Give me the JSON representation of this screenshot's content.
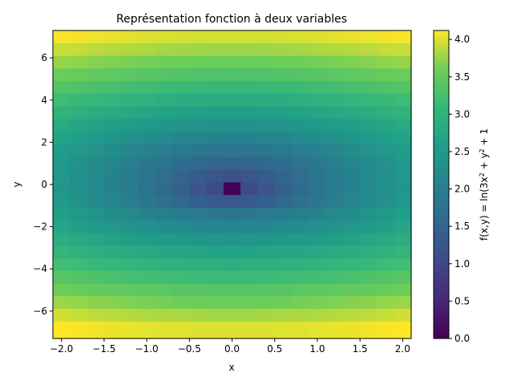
{
  "chart_data": {
    "type": "heatmap",
    "title": "Représentation fonction à deux variables",
    "xlabel": "x",
    "ylabel": "y",
    "colorbar_label": "f(x,y) = ln(3x² + y² + 1",
    "colormap": "viridis",
    "xlim": [
      -2.1,
      2.1
    ],
    "ylim": [
      -7.3,
      7.3
    ],
    "clim": [
      0.0,
      4.12
    ],
    "x_ticks": [
      -2.0,
      -1.5,
      -1.0,
      -0.5,
      0.0,
      0.5,
      1.0,
      1.5,
      2.0
    ],
    "x_tick_labels": [
      "−2.0",
      "−1.5",
      "−1.0",
      "−0.5",
      "0.0",
      "0.5",
      "1.0",
      "1.5",
      "2.0"
    ],
    "y_ticks": [
      6,
      4,
      2,
      0,
      -2,
      -4,
      -6
    ],
    "y_tick_labels": [
      "6",
      "4",
      "2",
      "0",
      "−2",
      "−4",
      "−6"
    ],
    "colorbar_ticks": [
      0.0,
      0.5,
      1.0,
      1.5,
      2.0,
      2.5,
      3.0,
      3.5,
      4.0
    ],
    "colorbar_tick_labels": [
      "0.0",
      "0.5",
      "1.0",
      "1.5",
      "2.0",
      "2.5",
      "3.0",
      "3.5",
      "4.0"
    ],
    "grid": false,
    "x_centers": [
      -2.0,
      -1.8,
      -1.6,
      -1.4,
      -1.2,
      -1.0,
      -0.8,
      -0.6,
      -0.4,
      -0.2,
      0.0,
      0.2,
      0.4,
      0.6,
      0.8,
      1.0,
      1.2,
      1.4,
      1.6,
      1.8,
      2.0
    ],
    "y_centers": [
      7.0,
      6.4,
      5.8,
      5.2,
      4.6,
      4.0,
      3.4,
      2.8,
      2.2,
      1.6,
      1.0,
      0.4,
      -0.2,
      -0.8,
      -1.4,
      -2.0,
      -2.6,
      -3.2,
      -3.8,
      -4.4,
      -5.0,
      -5.6,
      -6.2,
      -6.8
    ],
    "z_function": "f(x,y) = ln(3x² + y² + 1)",
    "z_values": [
      [
        4.1,
        4.08,
        4.06,
        4.04,
        4.02,
        4.0,
        3.99,
        3.98,
        3.97,
        3.97,
        3.97,
        3.97,
        3.97,
        3.98,
        3.99,
        4.0,
        4.02,
        4.04,
        4.06,
        4.08,
        4.1
      ],
      [
        3.93,
        3.91,
        3.88,
        3.86,
        3.84,
        3.82,
        3.8,
        3.79,
        3.78,
        3.77,
        3.77,
        3.77,
        3.78,
        3.79,
        3.8,
        3.82,
        3.84,
        3.86,
        3.88,
        3.91,
        3.93
      ],
      [
        3.75,
        3.72,
        3.69,
        3.66,
        3.64,
        3.62,
        3.6,
        3.58,
        3.57,
        3.56,
        3.56,
        3.56,
        3.57,
        3.58,
        3.6,
        3.62,
        3.64,
        3.66,
        3.69,
        3.72,
        3.75
      ],
      [
        3.56,
        3.53,
        3.49,
        3.46,
        3.43,
        3.4,
        3.38,
        3.36,
        3.34,
        3.34,
        3.33,
        3.34,
        3.34,
        3.36,
        3.38,
        3.4,
        3.43,
        3.46,
        3.49,
        3.53,
        3.56
      ],
      [
        3.37,
        3.33,
        3.29,
        3.25,
        3.21,
        3.18,
        3.15,
        3.13,
        3.11,
        3.1,
        3.1,
        3.1,
        3.11,
        3.13,
        3.15,
        3.18,
        3.21,
        3.25,
        3.29,
        3.33,
        3.37
      ],
      [
        3.18,
        3.13,
        3.08,
        3.03,
        2.99,
        2.95,
        2.91,
        2.89,
        2.87,
        2.85,
        2.85,
        2.85,
        2.87,
        2.89,
        2.91,
        2.95,
        2.99,
        3.03,
        3.08,
        3.13,
        3.18
      ],
      [
        3.0,
        2.94,
        2.88,
        2.82,
        2.77,
        2.72,
        2.68,
        2.64,
        2.61,
        2.6,
        2.59,
        2.6,
        2.61,
        2.64,
        2.68,
        2.72,
        2.77,
        2.82,
        2.88,
        2.94,
        3.0
      ],
      [
        2.82,
        2.75,
        2.68,
        2.61,
        2.55,
        2.49,
        2.44,
        2.39,
        2.36,
        2.34,
        2.33,
        2.34,
        2.36,
        2.39,
        2.44,
        2.49,
        2.55,
        2.61,
        2.68,
        2.75,
        2.82
      ],
      [
        2.67,
        2.59,
        2.5,
        2.42,
        2.34,
        2.26,
        2.2,
        2.14,
        2.1,
        2.07,
        2.06,
        2.07,
        2.1,
        2.14,
        2.2,
        2.26,
        2.34,
        2.42,
        2.5,
        2.59,
        2.67
      ],
      [
        2.56,
        2.46,
        2.35,
        2.25,
        2.15,
        2.06,
        1.97,
        1.9,
        1.84,
        1.8,
        1.79,
        1.8,
        1.84,
        1.9,
        1.97,
        2.06,
        2.15,
        2.25,
        2.35,
        2.46,
        2.56
      ],
      [
        2.48,
        2.36,
        2.24,
        2.11,
        1.99,
        1.87,
        1.76,
        1.65,
        1.57,
        1.51,
        1.48,
        1.51,
        1.57,
        1.65,
        1.76,
        1.87,
        1.99,
        2.11,
        2.24,
        2.36,
        2.48
      ],
      [
        2.46,
        2.34,
        2.2,
        2.07,
        1.94,
        1.8,
        1.66,
        1.5,
        1.33,
        1.23,
        1.2,
        1.23,
        1.33,
        1.5,
        1.66,
        1.8,
        1.94,
        2.07,
        2.2,
        2.34,
        2.46
      ],
      [
        2.45,
        2.33,
        2.2,
        2.06,
        1.92,
        1.77,
        1.6,
        1.42,
        1.23,
        1.08,
        0.03,
        1.08,
        1.23,
        1.42,
        1.6,
        1.77,
        1.92,
        2.06,
        2.2,
        2.33,
        2.45
      ],
      [
        2.48,
        2.36,
        2.23,
        2.1,
        1.97,
        1.84,
        1.7,
        1.55,
        1.41,
        1.31,
        1.28,
        1.31,
        1.41,
        1.55,
        1.7,
        1.84,
        1.97,
        2.1,
        2.23,
        2.36,
        2.48
      ],
      [
        2.58,
        2.47,
        2.37,
        2.27,
        2.17,
        2.08,
        2.0,
        1.93,
        1.88,
        1.84,
        1.83,
        1.84,
        1.88,
        1.93,
        2.0,
        2.08,
        2.17,
        2.27,
        2.37,
        2.47,
        2.58
      ],
      [
        2.71,
        2.62,
        2.54,
        2.46,
        2.38,
        2.31,
        2.25,
        2.2,
        2.16,
        2.14,
        2.13,
        2.14,
        2.16,
        2.2,
        2.25,
        2.31,
        2.38,
        2.46,
        2.54,
        2.62,
        2.71
      ],
      [
        2.87,
        2.8,
        2.73,
        2.66,
        2.6,
        2.55,
        2.5,
        2.47,
        2.44,
        2.42,
        2.41,
        2.42,
        2.44,
        2.47,
        2.5,
        2.55,
        2.6,
        2.66,
        2.73,
        2.8,
        2.87
      ],
      [
        3.04,
        2.98,
        2.92,
        2.87,
        2.82,
        2.78,
        2.74,
        2.71,
        2.69,
        2.67,
        2.67,
        2.67,
        2.69,
        2.71,
        2.74,
        2.78,
        2.82,
        2.87,
        2.92,
        2.98,
        3.04
      ],
      [
        3.22,
        3.17,
        3.12,
        3.08,
        3.04,
        3.0,
        2.97,
        2.94,
        2.93,
        2.92,
        2.91,
        2.92,
        2.93,
        2.94,
        2.97,
        3.0,
        3.04,
        3.08,
        3.12,
        3.17,
        3.22
      ],
      [
        3.4,
        3.36,
        3.32,
        3.29,
        3.25,
        3.22,
        3.2,
        3.18,
        3.16,
        3.15,
        3.15,
        3.15,
        3.16,
        3.18,
        3.2,
        3.22,
        3.25,
        3.29,
        3.32,
        3.36,
        3.4
      ],
      [
        3.59,
        3.55,
        3.52,
        3.49,
        3.46,
        3.44,
        3.42,
        3.4,
        3.39,
        3.38,
        3.38,
        3.38,
        3.39,
        3.4,
        3.42,
        3.44,
        3.46,
        3.49,
        3.52,
        3.55,
        3.59
      ],
      [
        3.77,
        3.74,
        3.71,
        3.69,
        3.66,
        3.64,
        3.63,
        3.61,
        3.6,
        3.59,
        3.59,
        3.59,
        3.6,
        3.61,
        3.63,
        3.64,
        3.66,
        3.69,
        3.71,
        3.74,
        3.77
      ],
      [
        3.96,
        3.93,
        3.9,
        3.88,
        3.86,
        3.84,
        3.83,
        3.82,
        3.81,
        3.8,
        3.8,
        3.8,
        3.81,
        3.82,
        3.83,
        3.84,
        3.86,
        3.88,
        3.9,
        3.93,
        3.96
      ],
      [
        4.12,
        4.1,
        4.08,
        4.06,
        4.05,
        4.03,
        4.02,
        4.01,
        4.0,
        4.0,
        4.0,
        4.0,
        4.0,
        4.01,
        4.02,
        4.03,
        4.05,
        4.06,
        4.08,
        4.1,
        4.12
      ]
    ]
  }
}
